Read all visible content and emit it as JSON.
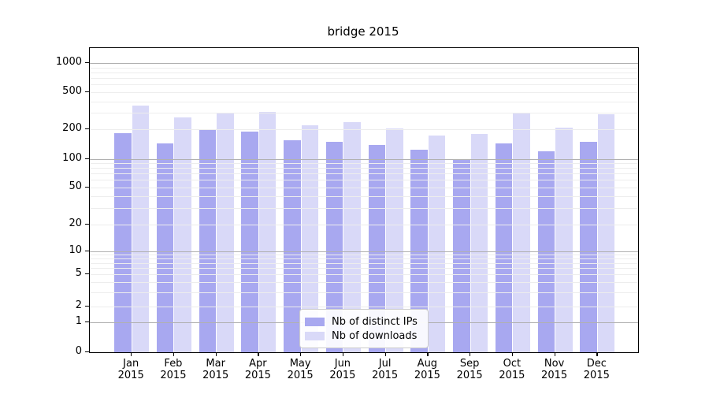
{
  "chart_data": {
    "type": "bar",
    "title": "bridge 2015",
    "categories": [
      "Jan 2015",
      "Feb 2015",
      "Mar 2015",
      "Apr 2015",
      "May 2015",
      "Jun 2015",
      "Jul 2015",
      "Aug 2015",
      "Sep 2015",
      "Oct 2015",
      "Nov 2015",
      "Dec 2015"
    ],
    "series": [
      {
        "name": "Nb of distinct IPs",
        "color": "#a8a8f0",
        "values": [
          185,
          145,
          200,
          190,
          155,
          150,
          140,
          125,
          97,
          145,
          120,
          150
        ]
      },
      {
        "name": "Nb of downloads",
        "color": "#d9d9f8",
        "values": [
          360,
          270,
          300,
          310,
          220,
          240,
          205,
          175,
          180,
          300,
          210,
          290
        ]
      }
    ],
    "xlabel": "",
    "ylabel": "",
    "y_scale": "symlog",
    "y_ticks": [
      0,
      1,
      2,
      5,
      10,
      20,
      50,
      100,
      200,
      500,
      1000
    ],
    "ylim": [
      0,
      1450
    ],
    "grid": true,
    "legend_position": "lower center",
    "colors": {
      "grid_major": "#b0b0b0",
      "grid_minor": "#ededed",
      "spine": "#000000",
      "background": "#ffffff"
    }
  }
}
